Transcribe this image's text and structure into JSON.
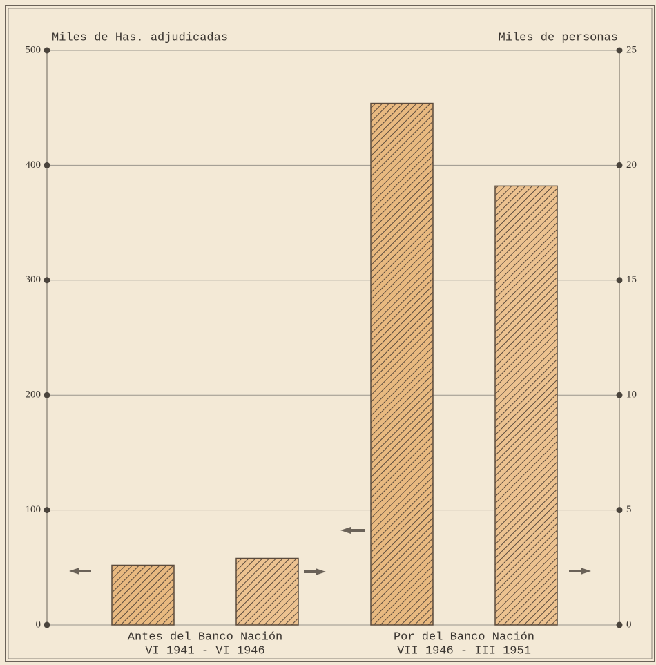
{
  "chart_data": {
    "type": "bar",
    "ylabel": "Miles de Has. adjudicadas",
    "y2label": "Miles de personas",
    "categories": [
      "Antes del Banco Nación",
      "Por del Banco Nación"
    ],
    "category_periods": [
      "VI 1941 - VI 1946",
      "VII 1946 - III 1951"
    ],
    "series": [
      {
        "color": "#e8b980",
        "values": [
          52,
          454
        ]
      },
      {
        "color": "#ecc290",
        "values": [
          2.9,
          19.1
        ],
        "axis": "y2"
      }
    ],
    "ylim": [
      0,
      500
    ],
    "yticks": [
      0,
      100,
      200,
      300,
      400,
      500
    ],
    "y2lim": [
      0,
      25
    ],
    "y2ticks": [
      0,
      5,
      10,
      15,
      20,
      25
    ],
    "grid": true
  }
}
